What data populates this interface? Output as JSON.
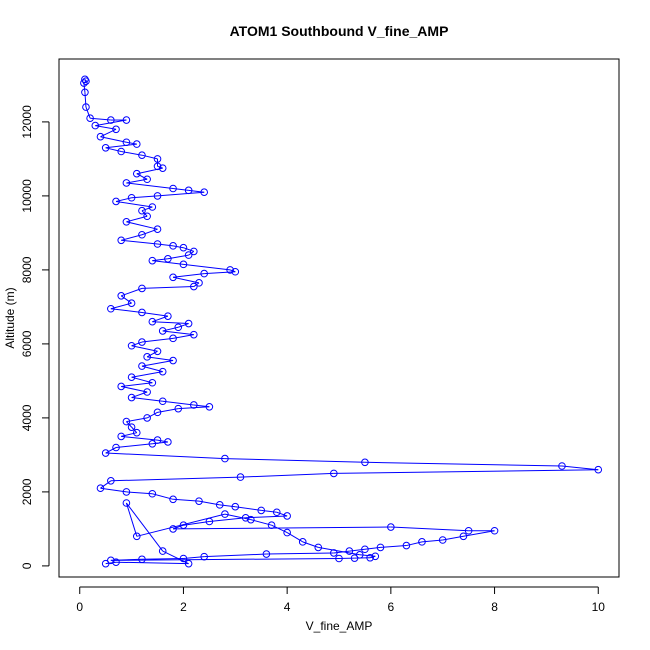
{
  "chart_data": {
    "type": "scatter",
    "title": "ATOM1 Southbound V_fine_AMP",
    "xlabel": "V_fine_AMP",
    "ylabel": "Altitude (m)",
    "xlim": [
      -0.4,
      10.4
    ],
    "ylim": [
      -300,
      13700
    ],
    "xticks": [
      0,
      2,
      4,
      6,
      8,
      10
    ],
    "yticks": [
      0,
      2000,
      4000,
      6000,
      8000,
      10000,
      12000
    ],
    "grid": false,
    "legend": "none",
    "color": "#0000ff",
    "series": [
      {
        "style": "points-and-lines",
        "points": [
          [
            0.1,
            13150
          ],
          [
            0.12,
            13100
          ],
          [
            0.08,
            13050
          ],
          [
            0.1,
            12800
          ],
          [
            0.12,
            12400
          ],
          [
            0.2,
            12100
          ],
          [
            0.6,
            12050
          ],
          [
            0.9,
            12050
          ],
          [
            0.3,
            11900
          ],
          [
            0.7,
            11800
          ],
          [
            0.4,
            11600
          ],
          [
            0.9,
            11450
          ],
          [
            1.1,
            11400
          ],
          [
            0.5,
            11300
          ],
          [
            0.8,
            11200
          ],
          [
            1.2,
            11100
          ],
          [
            1.5,
            11000
          ],
          [
            1.5,
            10800
          ],
          [
            1.6,
            10750
          ],
          [
            1.1,
            10600
          ],
          [
            1.3,
            10450
          ],
          [
            0.9,
            10350
          ],
          [
            1.8,
            10200
          ],
          [
            2.1,
            10150
          ],
          [
            2.4,
            10100
          ],
          [
            1.5,
            10000
          ],
          [
            1.0,
            9950
          ],
          [
            0.7,
            9850
          ],
          [
            1.4,
            9700
          ],
          [
            1.2,
            9600
          ],
          [
            1.3,
            9450
          ],
          [
            0.9,
            9300
          ],
          [
            1.5,
            9100
          ],
          [
            1.2,
            8950
          ],
          [
            0.8,
            8800
          ],
          [
            1.5,
            8700
          ],
          [
            1.8,
            8650
          ],
          [
            2.0,
            8600
          ],
          [
            2.2,
            8500
          ],
          [
            2.1,
            8400
          ],
          [
            1.7,
            8300
          ],
          [
            1.4,
            8250
          ],
          [
            2.0,
            8150
          ],
          [
            2.9,
            8000
          ],
          [
            3.0,
            7950
          ],
          [
            2.4,
            7900
          ],
          [
            1.8,
            7800
          ],
          [
            2.3,
            7650
          ],
          [
            2.2,
            7550
          ],
          [
            1.2,
            7500
          ],
          [
            0.8,
            7300
          ],
          [
            1.0,
            7100
          ],
          [
            0.6,
            6950
          ],
          [
            1.2,
            6850
          ],
          [
            1.7,
            6750
          ],
          [
            1.4,
            6600
          ],
          [
            2.1,
            6550
          ],
          [
            1.9,
            6450
          ],
          [
            1.6,
            6350
          ],
          [
            2.2,
            6250
          ],
          [
            1.8,
            6150
          ],
          [
            1.2,
            6050
          ],
          [
            1.0,
            5950
          ],
          [
            1.5,
            5800
          ],
          [
            1.3,
            5650
          ],
          [
            1.8,
            5550
          ],
          [
            1.2,
            5400
          ],
          [
            1.6,
            5250
          ],
          [
            1.0,
            5100
          ],
          [
            1.4,
            4950
          ],
          [
            0.8,
            4850
          ],
          [
            1.3,
            4700
          ],
          [
            1.0,
            4550
          ],
          [
            1.6,
            4450
          ],
          [
            2.2,
            4350
          ],
          [
            2.5,
            4300
          ],
          [
            1.9,
            4250
          ],
          [
            1.5,
            4150
          ],
          [
            1.3,
            4000
          ],
          [
            0.9,
            3900
          ],
          [
            1.0,
            3750
          ],
          [
            1.1,
            3600
          ],
          [
            0.8,
            3500
          ],
          [
            1.5,
            3400
          ],
          [
            1.7,
            3350
          ],
          [
            1.4,
            3300
          ],
          [
            0.7,
            3200
          ],
          [
            0.5,
            3050
          ],
          [
            2.8,
            2900
          ],
          [
            5.5,
            2800
          ],
          [
            9.3,
            2700
          ],
          [
            10.0,
            2600
          ],
          [
            4.9,
            2500
          ],
          [
            3.1,
            2400
          ],
          [
            0.6,
            2300
          ],
          [
            0.4,
            2100
          ],
          [
            0.9,
            2000
          ],
          [
            1.4,
            1950
          ],
          [
            1.8,
            1800
          ],
          [
            2.3,
            1750
          ],
          [
            2.7,
            1650
          ],
          [
            3.0,
            1600
          ],
          [
            3.5,
            1500
          ],
          [
            3.8,
            1450
          ],
          [
            4.0,
            1350
          ],
          [
            3.2,
            1300
          ],
          [
            2.5,
            1200
          ],
          [
            2.0,
            1100
          ],
          [
            1.8,
            1000
          ],
          [
            6.0,
            1050
          ],
          [
            7.5,
            950
          ],
          [
            8.0,
            950
          ],
          [
            7.4,
            800
          ],
          [
            7.0,
            700
          ],
          [
            6.6,
            650
          ],
          [
            6.3,
            550
          ],
          [
            5.8,
            500
          ],
          [
            5.5,
            450
          ],
          [
            5.2,
            400
          ],
          [
            4.9,
            350
          ],
          [
            3.6,
            320
          ],
          [
            2.4,
            250
          ],
          [
            2.0,
            200
          ],
          [
            1.2,
            180
          ],
          [
            0.6,
            150
          ],
          [
            5.0,
            200
          ],
          [
            5.3,
            210
          ],
          [
            5.6,
            220
          ],
          [
            5.7,
            260
          ],
          [
            5.4,
            300
          ],
          [
            4.6,
            500
          ],
          [
            4.3,
            650
          ],
          [
            4.0,
            900
          ],
          [
            3.7,
            1100
          ],
          [
            3.3,
            1250
          ],
          [
            2.8,
            1400
          ],
          [
            1.1,
            800
          ],
          [
            0.9,
            1700
          ],
          [
            1.6,
            400
          ],
          [
            2.1,
            60
          ],
          [
            0.7,
            100
          ],
          [
            0.5,
            60
          ]
        ]
      }
    ]
  }
}
